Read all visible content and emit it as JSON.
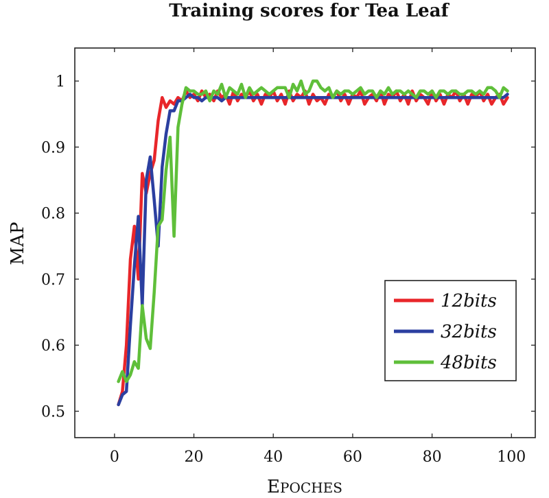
{
  "chart_data": {
    "type": "line",
    "title": "Training scores for Tea Leaf",
    "xlabel": "Epoches",
    "ylabel": "MAP",
    "xlim": [
      -10,
      106
    ],
    "ylim": [
      0.46,
      1.05
    ],
    "xticks": [
      0,
      20,
      40,
      60,
      80,
      100
    ],
    "yticks": [
      0.5,
      0.6,
      0.7,
      0.8,
      0.9,
      1
    ],
    "xtick_labels": [
      "0",
      "20",
      "40",
      "60",
      "80",
      "100"
    ],
    "ytick_labels": [
      "0.5",
      "0.6",
      "0.7",
      "0.8",
      "0.9",
      "1"
    ],
    "legend_position": "lower-right",
    "series": [
      {
        "name": "12bits",
        "color": "#e8262a",
        "x": [
          1,
          2,
          3,
          4,
          5,
          6,
          7,
          8,
          9,
          10,
          11,
          12,
          13,
          14,
          15,
          16,
          17,
          18,
          19,
          20,
          21,
          22,
          23,
          24,
          25,
          26,
          27,
          28,
          29,
          30,
          31,
          32,
          33,
          34,
          35,
          36,
          37,
          38,
          39,
          40,
          41,
          42,
          43,
          44,
          45,
          46,
          47,
          48,
          49,
          50,
          51,
          52,
          53,
          54,
          55,
          56,
          57,
          58,
          59,
          60,
          61,
          62,
          63,
          64,
          65,
          66,
          67,
          68,
          69,
          70,
          71,
          72,
          73,
          74,
          75,
          76,
          77,
          78,
          79,
          80,
          81,
          82,
          83,
          84,
          85,
          86,
          87,
          88,
          89,
          90,
          91,
          92,
          93,
          94,
          95,
          96,
          97,
          98,
          99
        ],
        "values": [
          0.51,
          0.53,
          0.6,
          0.73,
          0.78,
          0.7,
          0.86,
          0.83,
          0.86,
          0.88,
          0.94,
          0.975,
          0.96,
          0.97,
          0.965,
          0.975,
          0.97,
          0.985,
          0.975,
          0.98,
          0.97,
          0.985,
          0.975,
          0.98,
          0.97,
          0.985,
          0.975,
          0.98,
          0.965,
          0.985,
          0.97,
          0.98,
          0.975,
          0.985,
          0.97,
          0.98,
          0.965,
          0.98,
          0.975,
          0.985,
          0.97,
          0.98,
          0.965,
          0.985,
          0.97,
          0.98,
          0.975,
          0.985,
          0.965,
          0.98,
          0.97,
          0.975,
          0.965,
          0.98,
          0.975,
          0.985,
          0.97,
          0.98,
          0.965,
          0.98,
          0.975,
          0.985,
          0.965,
          0.975,
          0.98,
          0.97,
          0.985,
          0.965,
          0.98,
          0.975,
          0.985,
          0.97,
          0.98,
          0.965,
          0.985,
          0.97,
          0.98,
          0.975,
          0.965,
          0.985,
          0.97,
          0.98,
          0.965,
          0.98,
          0.975,
          0.985,
          0.97,
          0.98,
          0.965,
          0.98,
          0.975,
          0.985,
          0.97,
          0.98,
          0.965,
          0.975,
          0.98,
          0.965,
          0.975
        ]
      },
      {
        "name": "32bits",
        "color": "#2b3fa0",
        "x": [
          1,
          2,
          3,
          4,
          5,
          6,
          7,
          8,
          9,
          10,
          11,
          12,
          13,
          14,
          15,
          16,
          17,
          18,
          19,
          20,
          21,
          22,
          23,
          24,
          25,
          26,
          27,
          28,
          29,
          30,
          31,
          32,
          33,
          34,
          35,
          36,
          37,
          38,
          39,
          40,
          41,
          42,
          43,
          44,
          45,
          46,
          47,
          48,
          49,
          50,
          51,
          52,
          53,
          54,
          55,
          56,
          57,
          58,
          59,
          60,
          61,
          62,
          63,
          64,
          65,
          66,
          67,
          68,
          69,
          70,
          71,
          72,
          73,
          74,
          75,
          76,
          77,
          78,
          79,
          80,
          81,
          82,
          83,
          84,
          85,
          86,
          87,
          88,
          89,
          90,
          91,
          92,
          93,
          94,
          95,
          96,
          97,
          98,
          99
        ],
        "values": [
          0.51,
          0.525,
          0.53,
          0.63,
          0.72,
          0.795,
          0.66,
          0.85,
          0.885,
          0.82,
          0.75,
          0.87,
          0.92,
          0.955,
          0.955,
          0.97,
          0.97,
          0.975,
          0.98,
          0.975,
          0.975,
          0.97,
          0.975,
          0.975,
          0.975,
          0.975,
          0.97,
          0.975,
          0.975,
          0.975,
          0.975,
          0.975,
          0.975,
          0.975,
          0.975,
          0.975,
          0.975,
          0.975,
          0.975,
          0.975,
          0.975,
          0.975,
          0.975,
          0.975,
          0.975,
          0.975,
          0.975,
          0.975,
          0.975,
          0.975,
          0.975,
          0.975,
          0.975,
          0.975,
          0.975,
          0.975,
          0.975,
          0.975,
          0.975,
          0.975,
          0.975,
          0.975,
          0.975,
          0.975,
          0.975,
          0.975,
          0.975,
          0.975,
          0.975,
          0.975,
          0.975,
          0.975,
          0.975,
          0.975,
          0.975,
          0.975,
          0.975,
          0.975,
          0.975,
          0.975,
          0.975,
          0.975,
          0.975,
          0.975,
          0.975,
          0.975,
          0.975,
          0.975,
          0.975,
          0.975,
          0.975,
          0.975,
          0.975,
          0.975,
          0.975,
          0.975,
          0.975,
          0.975,
          0.98
        ]
      },
      {
        "name": "48bits",
        "color": "#5fbf3a",
        "x": [
          1,
          2,
          3,
          4,
          5,
          6,
          7,
          8,
          9,
          10,
          11,
          12,
          13,
          14,
          15,
          16,
          17,
          18,
          19,
          20,
          21,
          22,
          23,
          24,
          25,
          26,
          27,
          28,
          29,
          30,
          31,
          32,
          33,
          34,
          35,
          36,
          37,
          38,
          39,
          40,
          41,
          42,
          43,
          44,
          45,
          46,
          47,
          48,
          49,
          50,
          51,
          52,
          53,
          54,
          55,
          56,
          57,
          58,
          59,
          60,
          61,
          62,
          63,
          64,
          65,
          66,
          67,
          68,
          69,
          70,
          71,
          72,
          73,
          74,
          75,
          76,
          77,
          78,
          79,
          80,
          81,
          82,
          83,
          84,
          85,
          86,
          87,
          88,
          89,
          90,
          91,
          92,
          93,
          94,
          95,
          96,
          97,
          98,
          99
        ],
        "values": [
          0.545,
          0.56,
          0.545,
          0.555,
          0.575,
          0.565,
          0.66,
          0.61,
          0.595,
          0.68,
          0.78,
          0.79,
          0.865,
          0.915,
          0.765,
          0.93,
          0.965,
          0.99,
          0.985,
          0.985,
          0.98,
          0.98,
          0.985,
          0.97,
          0.985,
          0.98,
          0.995,
          0.975,
          0.99,
          0.985,
          0.98,
          0.995,
          0.975,
          0.99,
          0.98,
          0.985,
          0.99,
          0.985,
          0.98,
          0.985,
          0.99,
          0.99,
          0.99,
          0.975,
          0.995,
          0.985,
          1.0,
          0.98,
          0.985,
          1.0,
          1.0,
          0.99,
          0.985,
          0.99,
          0.975,
          0.985,
          0.98,
          0.985,
          0.985,
          0.98,
          0.985,
          0.99,
          0.98,
          0.985,
          0.985,
          0.975,
          0.985,
          0.98,
          0.99,
          0.98,
          0.985,
          0.985,
          0.98,
          0.985,
          0.98,
          0.975,
          0.985,
          0.985,
          0.98,
          0.985,
          0.975,
          0.985,
          0.985,
          0.98,
          0.985,
          0.985,
          0.98,
          0.98,
          0.985,
          0.985,
          0.98,
          0.985,
          0.98,
          0.99,
          0.99,
          0.985,
          0.975,
          0.99,
          0.985
        ]
      }
    ]
  }
}
